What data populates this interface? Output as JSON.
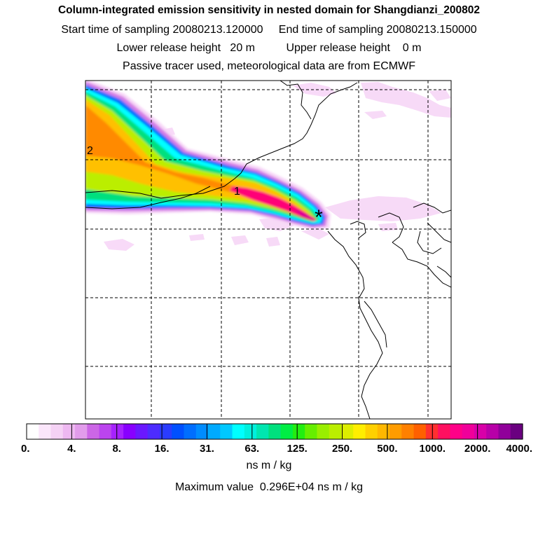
{
  "header": {
    "title": "Column-integrated emission sensitivity in nested domain for Shangdianzi_200802",
    "start_label": "Start time of sampling",
    "start_value": "20080213.120000",
    "end_label": "End time of sampling",
    "end_value": "20080213.150000",
    "lower_label": "Lower release height",
    "lower_value": "20 m",
    "upper_label": "Upper release height",
    "upper_value": "0 m",
    "tracer_note": "Passive tracer used, meteorological data are from ECMWF"
  },
  "chart_data": {
    "type": "heatmap",
    "title": "Column-integrated emission sensitivity in nested domain for Shangdianzi_200802",
    "units": "ns m / kg",
    "max_value_text": "Maximum value  0.296E+04 ns m / kg",
    "max_value": 2960,
    "scale": "logarithmic",
    "colorbar_ticks": [
      "0.",
      "4.",
      "8.",
      "16.",
      "31.",
      "63.",
      "125.",
      "250.",
      "500.",
      "1000.",
      "2000.",
      "4000."
    ],
    "colorbar_colors": [
      "#ffffff",
      "#fbe6fb",
      "#f5d2f5",
      "#eeb8f1",
      "#e29ceb",
      "#cc66e6",
      "#bb44ee",
      "#a622ff",
      "#8800ff",
      "#6a18ff",
      "#4d2cff",
      "#2a3cff",
      "#0050ff",
      "#006eff",
      "#008cff",
      "#00aaff",
      "#00c8ff",
      "#00ffff",
      "#00f0dd",
      "#00e6b0",
      "#00e07e",
      "#00ee44",
      "#22ee11",
      "#66ee00",
      "#99ee00",
      "#bbee00",
      "#ddee00",
      "#ffee00",
      "#ffd000",
      "#ffb800",
      "#ff9c00",
      "#ff8000",
      "#ff6000",
      "#ff3030",
      "#ff1060",
      "#ff0088",
      "#f0009a",
      "#d800a8",
      "#b800a8",
      "#90009a",
      "#6a0080"
    ],
    "release_site_marker": "*",
    "cluster_labels": [
      "1",
      "2"
    ],
    "plume_bands": [
      {
        "color": "#f7d6f7",
        "value_range": [
          0,
          4
        ]
      },
      {
        "color": "#d47de6",
        "value_range": [
          4,
          8
        ]
      },
      {
        "color": "#0070ff",
        "value_range": [
          16,
          31
        ]
      },
      {
        "color": "#00ffff",
        "value_range": [
          31,
          63
        ]
      },
      {
        "color": "#00e07e",
        "value_range": [
          63,
          125
        ]
      },
      {
        "color": "#bbee00",
        "value_range": [
          125,
          250
        ]
      },
      {
        "color": "#ffc000",
        "value_range": [
          250,
          500
        ]
      },
      {
        "color": "#ff8a00",
        "value_range": [
          500,
          1000
        ]
      },
      {
        "color": "#ff0077",
        "value_range": [
          1000,
          2000
        ]
      }
    ],
    "grid": "dashed lat/lon lines"
  }
}
